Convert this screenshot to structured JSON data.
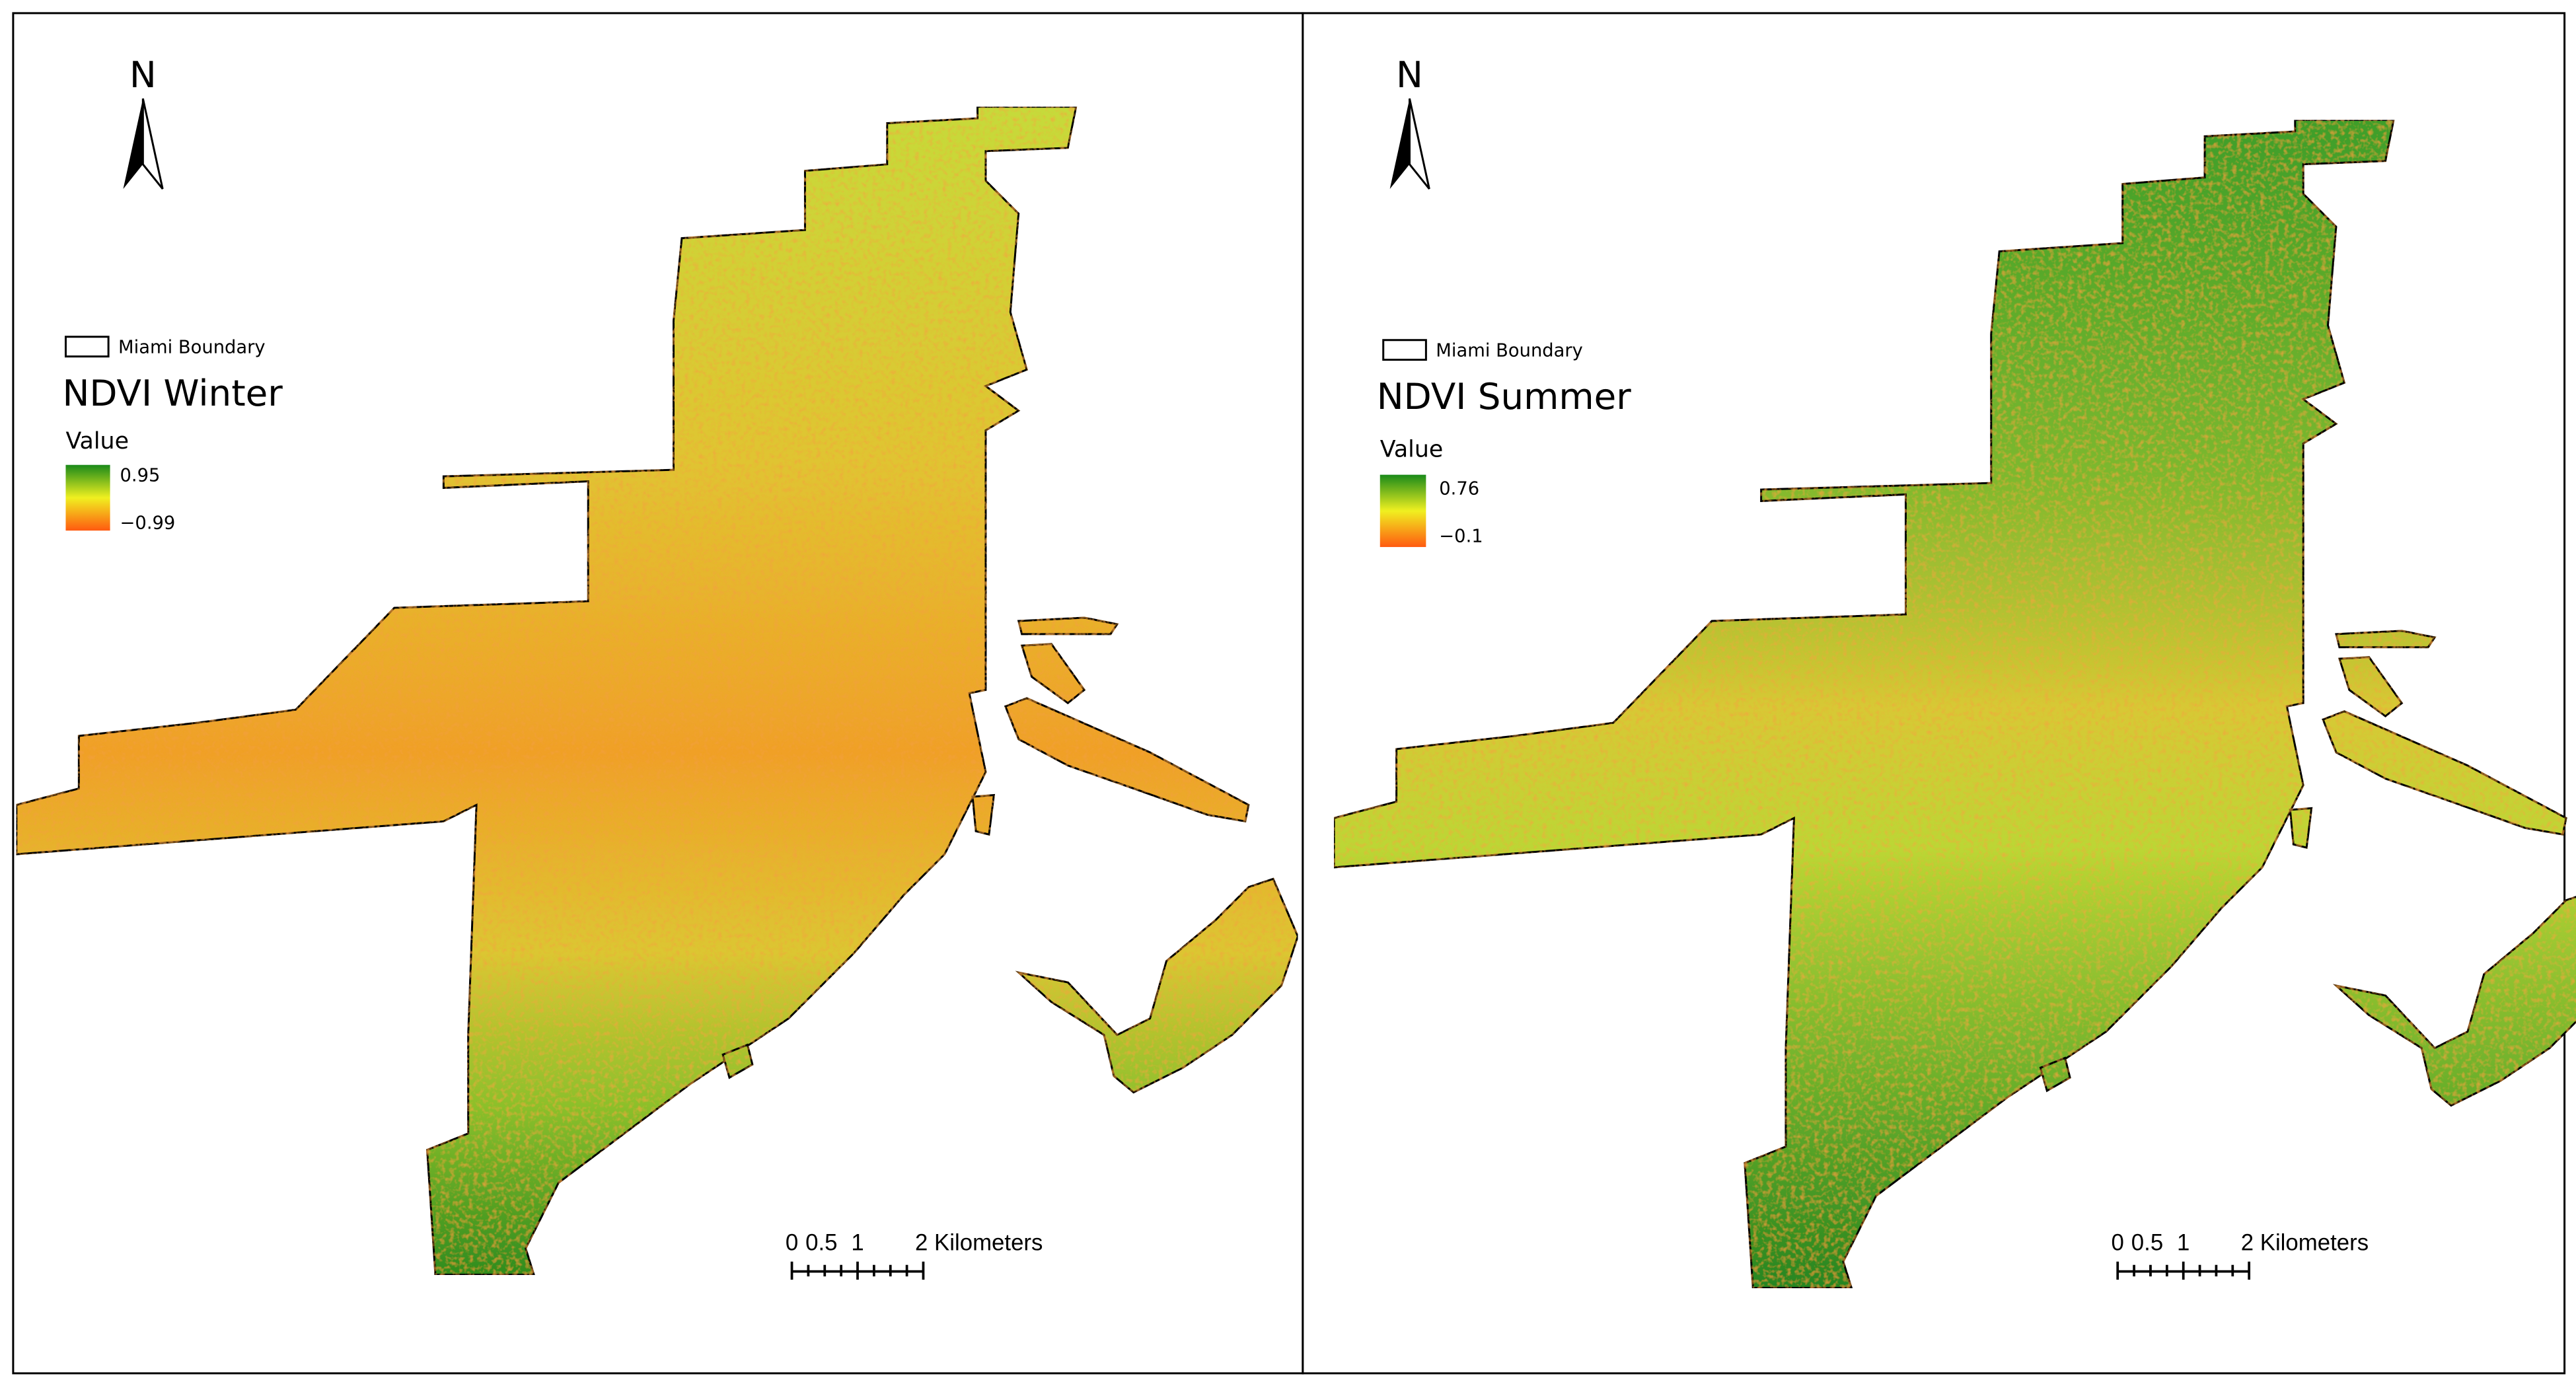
{
  "panels": [
    {
      "north": "N",
      "legend": {
        "boundary_label": "Miami Boundary",
        "title": "NDVI Winter",
        "value_label": "Value",
        "max": "0.95",
        "min": "−0.99"
      },
      "scale_bar": {
        "ticks": [
          "0",
          "0.5",
          "1"
        ],
        "end_label": "2 Kilometers"
      }
    },
    {
      "north": "N",
      "legend": {
        "boundary_label": "Miami Boundary",
        "title": "NDVI Summer",
        "value_label": "Value",
        "max": "0.76",
        "min": "−0.1"
      },
      "scale_bar": {
        "ticks": [
          "0",
          "0.5",
          "1"
        ],
        "end_label": "2 Kilometers"
      }
    }
  ]
}
